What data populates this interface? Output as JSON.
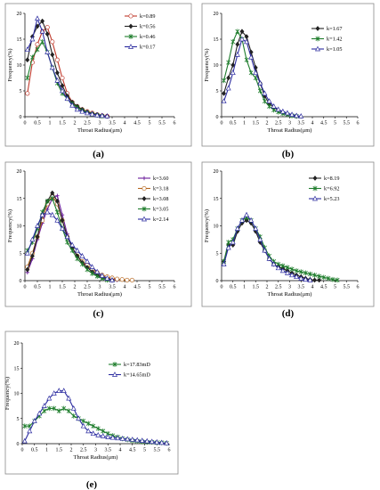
{
  "chart_data": [
    {
      "panel_label": "(a)",
      "type": "line",
      "xlabel": "Throat Radius(μm)",
      "ylabel": "Frequency(%)",
      "xlim": [
        0,
        6
      ],
      "ylim": [
        0,
        20
      ],
      "xticks": [
        "0",
        "0.5",
        "1",
        "1.5",
        "2",
        "2.5",
        "3",
        "3.5",
        "4",
        "4.5",
        "5",
        "5.5",
        "6"
      ],
      "yticks": [
        "0",
        "5",
        "10",
        "15",
        "20"
      ],
      "grid": false,
      "legend_position": "top-right",
      "series": [
        {
          "name": "k=0.89",
          "color": "#c0392b",
          "marker": "circle",
          "x": [
            0.1,
            0.3,
            0.5,
            0.7,
            0.9,
            1.1,
            1.3,
            1.5,
            1.7,
            1.9,
            2.1,
            2.3,
            2.5,
            2.7,
            2.9,
            3.1,
            3.3
          ],
          "y": [
            4.5,
            10.5,
            14,
            16.5,
            17.3,
            14.5,
            11,
            7.5,
            4.5,
            2.8,
            2.0,
            1.4,
            1.0,
            0.7,
            0.4,
            0.2,
            0.1
          ]
        },
        {
          "name": "k=0.56",
          "color": "#222222",
          "marker": "diamond",
          "x": [
            0.1,
            0.3,
            0.5,
            0.7,
            0.9,
            1.1,
            1.3,
            1.5,
            1.7,
            1.9,
            2.1,
            2.3,
            2.5,
            2.7,
            2.9,
            3.1,
            3.3
          ],
          "y": [
            11,
            15.5,
            17.5,
            18.5,
            16,
            12,
            8.5,
            6,
            4,
            2.8,
            2.0,
            1.4,
            0.9,
            0.6,
            0.4,
            0.2,
            0.1
          ]
        },
        {
          "name": "k=0.46",
          "color": "#1e7d2c",
          "marker": "asterisk",
          "x": [
            0.1,
            0.3,
            0.5,
            0.7,
            0.9,
            1.1,
            1.3,
            1.5,
            1.7,
            1.9,
            2.1,
            2.3,
            2.5,
            2.7,
            2.9,
            3.1
          ],
          "y": [
            7.5,
            11.5,
            13,
            14.5,
            12.5,
            9.5,
            6.5,
            4.5,
            3.5,
            2.5,
            1.8,
            1.2,
            0.8,
            0.5,
            0.3,
            0.1
          ]
        },
        {
          "name": "k=0.17",
          "color": "#2c2ca0",
          "marker": "triangle",
          "x": [
            0.1,
            0.3,
            0.5,
            0.7,
            0.9,
            1.1,
            1.3,
            1.5,
            1.7,
            1.9,
            2.1,
            2.3,
            2.5,
            2.7,
            2.9,
            3.1,
            3.3
          ],
          "y": [
            13,
            15,
            19,
            16.5,
            12.5,
            9.5,
            7,
            5,
            3.5,
            2.2,
            1.4,
            1.0,
            0.7,
            0.5,
            0.3,
            0.2,
            0.1
          ]
        }
      ]
    },
    {
      "panel_label": "(b)",
      "type": "line",
      "xlabel": "Throat Radius(μm)",
      "ylabel": "Frequency(%)",
      "xlim": [
        0,
        6
      ],
      "ylim": [
        0,
        20
      ],
      "xticks": [
        "0",
        "0.5",
        "1",
        "1.5",
        "2",
        "2.5",
        "3",
        "3.5",
        "4",
        "4.5",
        "5",
        "5.5",
        "6"
      ],
      "yticks": [
        "0",
        "5",
        "10",
        "15",
        "20"
      ],
      "grid": false,
      "legend_position": "top-right",
      "series": [
        {
          "name": "k=1.67",
          "color": "#222222",
          "marker": "diamond",
          "x": [
            0.1,
            0.3,
            0.5,
            0.7,
            0.9,
            1.1,
            1.3,
            1.5,
            1.7,
            1.9,
            2.1,
            2.3,
            2.5,
            2.7,
            2.9,
            3.1,
            3.3
          ],
          "y": [
            4.5,
            7.5,
            10,
            14,
            16.5,
            15.5,
            12.5,
            9.5,
            6.5,
            4,
            2.5,
            1.8,
            1.2,
            0.8,
            0.5,
            0.3,
            0.1
          ]
        },
        {
          "name": "k=1.42",
          "color": "#1e7d2c",
          "marker": "asterisk",
          "x": [
            0.1,
            0.3,
            0.5,
            0.7,
            0.9,
            1.1,
            1.3,
            1.5,
            1.7,
            1.9,
            2.1,
            2.3,
            2.5,
            2.7,
            2.9,
            3.1,
            3.3
          ],
          "y": [
            7,
            10.5,
            14.5,
            16.5,
            15,
            11,
            8.5,
            7.5,
            5,
            3,
            2.0,
            1.3,
            0.9,
            0.6,
            0.4,
            0.2,
            0.1
          ]
        },
        {
          "name": "k=1.05",
          "color": "#2c2ca0",
          "marker": "triangle",
          "x": [
            0.1,
            0.3,
            0.5,
            0.7,
            0.9,
            1.1,
            1.3,
            1.5,
            1.7,
            1.9,
            2.1,
            2.3,
            2.5,
            2.7,
            2.9,
            3.1,
            3.3,
            3.5
          ],
          "y": [
            3,
            5.5,
            8.5,
            12,
            15,
            14.5,
            11.5,
            8.5,
            6.5,
            4.5,
            3,
            2,
            1.4,
            1.0,
            0.7,
            0.4,
            0.2,
            0.1
          ]
        }
      ]
    },
    {
      "panel_label": "(c)",
      "type": "line",
      "xlabel": "Throat  Radius(μm)",
      "ylabel": "Frequency(%)",
      "xlim": [
        0,
        6
      ],
      "ylim": [
        0,
        20
      ],
      "xticks": [
        "0",
        "0.5",
        "1",
        "1.5",
        "2",
        "2.5",
        "3",
        "3.5",
        "4",
        "4.5",
        "5",
        "5.5",
        "6"
      ],
      "yticks": [
        "0",
        "5",
        "10",
        "15",
        "20"
      ],
      "grid": false,
      "legend_position": "top-right",
      "series": [
        {
          "name": "k=3.60",
          "color": "#6a1b9a",
          "marker": "plus",
          "x": [
            0.1,
            0.3,
            0.5,
            0.7,
            0.9,
            1.1,
            1.3,
            1.5,
            1.7,
            1.9,
            2.1,
            2.3,
            2.5,
            2.7,
            2.9,
            3.1,
            3.3,
            3.5,
            3.7
          ],
          "y": [
            1.5,
            4,
            7.5,
            10.5,
            13,
            15,
            15.5,
            12,
            8.5,
            6,
            4.5,
            3.5,
            2.5,
            1.8,
            1.2,
            0.8,
            0.5,
            0.3,
            0.1
          ]
        },
        {
          "name": "k=3.18",
          "color": "#b5651d",
          "marker": "circle",
          "x": [
            0.1,
            0.3,
            0.5,
            0.7,
            0.9,
            1.1,
            1.3,
            1.5,
            1.7,
            1.9,
            2.1,
            2.3,
            2.5,
            2.7,
            2.9,
            3.1,
            3.3,
            3.5,
            3.7,
            3.9,
            4.1,
            4.3
          ],
          "y": [
            2.5,
            5,
            8,
            11,
            14,
            15.5,
            14,
            11,
            8,
            6,
            4.5,
            3.5,
            2.8,
            2.1,
            1.5,
            1.0,
            0.7,
            0.5,
            0.3,
            0.2,
            0.1,
            0.1
          ]
        },
        {
          "name": "k=3.08",
          "color": "#222222",
          "marker": "diamond",
          "x": [
            0.1,
            0.3,
            0.5,
            0.7,
            0.9,
            1.1,
            1.3,
            1.5,
            1.7,
            1.9,
            2.1,
            2.3,
            2.5,
            2.7,
            2.9,
            3.1,
            3.3,
            3.5
          ],
          "y": [
            2,
            4.5,
            8,
            12,
            14.5,
            16,
            14.5,
            11,
            8,
            6,
            4.5,
            3.3,
            2.4,
            1.6,
            1.0,
            0.6,
            0.3,
            0.1
          ]
        },
        {
          "name": "k=3.05",
          "color": "#1e7d2c",
          "marker": "asterisk",
          "x": [
            0.1,
            0.3,
            0.5,
            0.7,
            0.9,
            1.1,
            1.3,
            1.5,
            1.7,
            1.9,
            2.1,
            2.3,
            2.5,
            2.7,
            2.9,
            3.1,
            3.3
          ],
          "y": [
            5.5,
            7,
            9.5,
            12.5,
            14.5,
            15,
            12.5,
            9.5,
            7,
            5.5,
            4,
            3,
            2,
            1.3,
            0.8,
            0.4,
            0.1
          ]
        },
        {
          "name": "k=2.14",
          "color": "#2c2ca0",
          "marker": "triangle",
          "x": [
            0.1,
            0.3,
            0.5,
            0.7,
            0.9,
            1.1,
            1.3,
            1.5,
            1.7,
            1.9,
            2.1,
            2.3,
            2.5,
            2.7,
            2.9,
            3.1,
            3.3,
            3.5
          ],
          "y": [
            5,
            7.5,
            10,
            12,
            12.5,
            12,
            11,
            9.5,
            8,
            6.5,
            5.5,
            4.5,
            3.5,
            2.5,
            1.6,
            0.9,
            0.4,
            0.1
          ]
        }
      ]
    },
    {
      "panel_label": "(d)",
      "type": "line",
      "xlabel": "Throat Radius(μm)",
      "ylabel": "Frequency(%)",
      "xlim": [
        0,
        6
      ],
      "ylim": [
        0,
        20
      ],
      "xticks": [
        "0",
        "0.5",
        "1",
        "1.5",
        "2",
        "2.5",
        "3",
        "3.5",
        "4",
        "4.5",
        "5",
        "5.5",
        "6"
      ],
      "yticks": [
        "0",
        "5",
        "10",
        "15",
        "20"
      ],
      "grid": false,
      "legend_position": "top-right",
      "series": [
        {
          "name": "k=8.19",
          "color": "#222222",
          "marker": "diamond",
          "x": [
            0.1,
            0.3,
            0.5,
            0.7,
            0.9,
            1.1,
            1.3,
            1.5,
            1.7,
            1.9,
            2.1,
            2.3,
            2.5,
            2.7,
            2.9,
            3.1,
            3.3,
            3.5,
            3.7,
            3.9,
            4.1,
            4.3
          ],
          "y": [
            3.5,
            6.5,
            6.5,
            9,
            10.5,
            11,
            10.5,
            9,
            7,
            5.5,
            4,
            3,
            2.5,
            2.2,
            1.8,
            1.4,
            1.0,
            0.7,
            0.4,
            0.2,
            0.1,
            0.1
          ]
        },
        {
          "name": "k=6.92",
          "color": "#1e7d2c",
          "marker": "asterisk",
          "x": [
            0.1,
            0.3,
            0.5,
            0.7,
            0.9,
            1.1,
            1.3,
            1.5,
            1.7,
            1.9,
            2.1,
            2.3,
            2.5,
            2.7,
            2.9,
            3.1,
            3.3,
            3.5,
            3.7,
            3.9,
            4.1,
            4.3,
            4.5,
            4.7,
            4.9,
            5.1
          ],
          "y": [
            3.5,
            7,
            7.5,
            9.5,
            11,
            11.5,
            11,
            9.5,
            8,
            6,
            4.5,
            3.5,
            3,
            2.7,
            2.4,
            2.1,
            1.8,
            1.6,
            1.4,
            1.2,
            1.0,
            0.8,
            0.6,
            0.4,
            0.2,
            0.1
          ]
        },
        {
          "name": "k=5.23",
          "color": "#2c2ca0",
          "marker": "triangle",
          "x": [
            0.1,
            0.3,
            0.5,
            0.7,
            0.9,
            1.1,
            1.3,
            1.5,
            1.7,
            1.9,
            2.1,
            2.3,
            2.5,
            2.7,
            2.9,
            3.1,
            3.3,
            3.5,
            3.7,
            3.9
          ],
          "y": [
            3,
            6,
            7,
            9.5,
            11,
            12,
            11,
            9.5,
            7.5,
            5.5,
            4,
            3,
            2.3,
            1.8,
            1.4,
            1.0,
            0.7,
            0.4,
            0.2,
            0.1
          ]
        }
      ]
    },
    {
      "panel_label": "(e)",
      "type": "line",
      "xlabel": "Throat Radius(μm)",
      "ylabel": "Frequency(%)",
      "xlim": [
        0,
        6
      ],
      "ylim": [
        0,
        20
      ],
      "xticks": [
        "0",
        "0.5",
        "1",
        "1.5",
        "2",
        "2.5",
        "3",
        "3.5",
        "4",
        "4.5",
        "5",
        "5.5",
        "6"
      ],
      "yticks": [
        "0",
        "5",
        "10",
        "15",
        "20"
      ],
      "grid": false,
      "legend_position": "top-right",
      "series": [
        {
          "name": "k=17.83mD",
          "color": "#1e7d2c",
          "marker": "asterisk",
          "x": [
            0.1,
            0.3,
            0.5,
            0.7,
            0.9,
            1.1,
            1.3,
            1.5,
            1.7,
            1.9,
            2.1,
            2.3,
            2.5,
            2.7,
            2.9,
            3.1,
            3.3,
            3.5,
            3.7,
            3.9,
            4.1,
            4.3,
            4.5,
            4.7,
            4.9,
            5.1,
            5.3,
            5.5,
            5.7,
            5.9
          ],
          "y": [
            3.5,
            3.5,
            4.5,
            5.5,
            6.5,
            7,
            7,
            6.5,
            7,
            6.5,
            5.5,
            5,
            4.5,
            4,
            3.5,
            3,
            2.5,
            2,
            1.6,
            1.3,
            1.0,
            0.8,
            0.6,
            0.5,
            0.4,
            0.3,
            0.3,
            0.2,
            0.2,
            0.1
          ]
        },
        {
          "name": "k=14.65mD",
          "color": "#2c2ca0",
          "marker": "triangle",
          "x": [
            0.1,
            0.3,
            0.5,
            0.7,
            0.9,
            1.1,
            1.3,
            1.5,
            1.7,
            1.9,
            2.1,
            2.3,
            2.5,
            2.7,
            2.9,
            3.1,
            3.3,
            3.5,
            3.7,
            3.9,
            4.1,
            4.3,
            4.5,
            4.7,
            4.9,
            5.1,
            5.3,
            5.5,
            5.7,
            5.9
          ],
          "y": [
            0.5,
            2.5,
            4.5,
            6,
            7.5,
            9,
            10,
            10.5,
            10.5,
            9,
            7,
            5,
            3.5,
            2.5,
            2,
            1.7,
            1.5,
            1.3,
            1.2,
            1.1,
            1.0,
            0.9,
            0.8,
            0.7,
            0.6,
            0.5,
            0.4,
            0.3,
            0.2,
            0.1
          ]
        }
      ]
    }
  ]
}
